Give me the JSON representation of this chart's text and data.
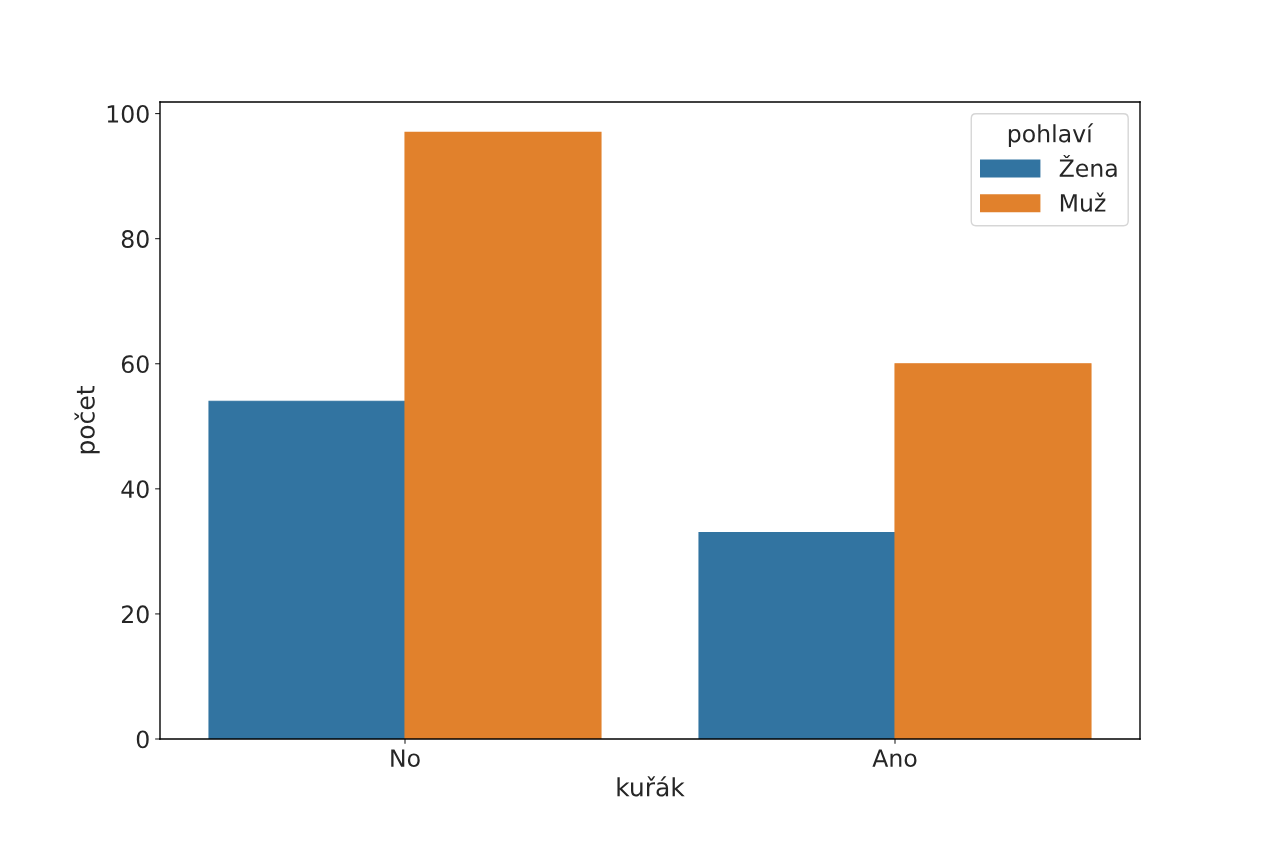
{
  "chart_data": {
    "type": "bar",
    "xlabel": "kuřák",
    "ylabel": "počet",
    "legend_title": "pohlaví",
    "categories": [
      "No",
      "Ano"
    ],
    "series": [
      {
        "name": "Žena",
        "color": "#3274a1",
        "values": [
          54,
          33
        ]
      },
      {
        "name": "Muž",
        "color": "#e1812c",
        "values": [
          97,
          60
        ]
      }
    ],
    "ylim": [
      0,
      101.85
    ],
    "yticks": [
      0,
      20,
      40,
      60,
      80,
      100
    ],
    "grid": false,
    "legend": "top right"
  }
}
